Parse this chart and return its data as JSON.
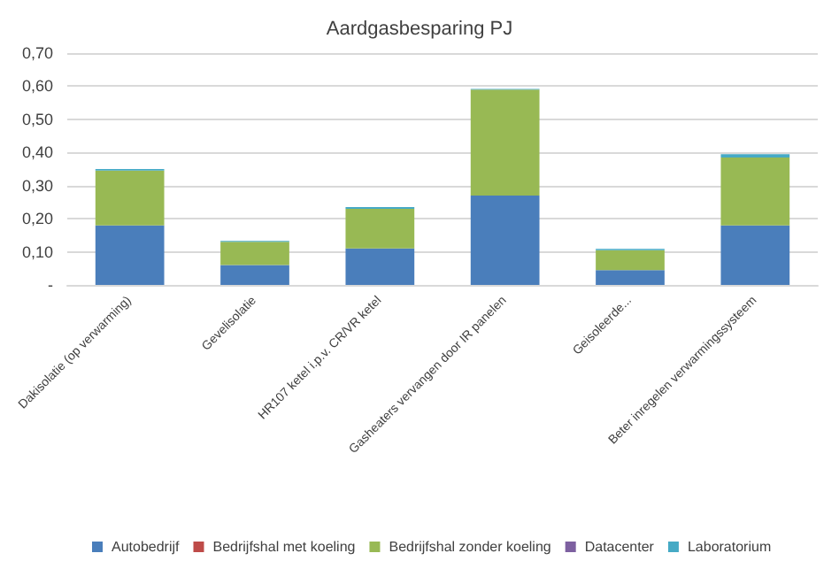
{
  "chart_data": {
    "type": "bar",
    "title": "Aardgasbesparing PJ",
    "stacked": true,
    "categories": [
      "Dakisolatie (op verwarming)",
      "Gevelisolatie",
      "HR107 ketel i.p.v. CR/VR ketel",
      "Gasheaters vervangen door IR panelen",
      "Geisoleerde...",
      "Beter inregelen verwarmingssysteem"
    ],
    "series": [
      {
        "name": "Autobedrijf",
        "color": "#4a7ebb",
        "values": [
          0.18,
          0.06,
          0.11,
          0.27,
          0.045,
          0.18
        ]
      },
      {
        "name": "Bedrijfshal met koeling",
        "color": "#be4b48",
        "values": [
          0,
          0,
          0,
          0,
          0,
          0
        ]
      },
      {
        "name": "Bedrijfshal zonder koeling",
        "color": "#98b954",
        "values": [
          0.165,
          0.07,
          0.12,
          0.32,
          0.06,
          0.205
        ]
      },
      {
        "name": "Datacenter",
        "color": "#7d60a0",
        "values": [
          0,
          0,
          0,
          0,
          0,
          0
        ]
      },
      {
        "name": "Laboratorium",
        "color": "#46aac5",
        "values": [
          0.005,
          0.003,
          0.005,
          0.002,
          0.004,
          0.01
        ]
      }
    ],
    "ylim": [
      0,
      0.7
    ],
    "yticks": [
      {
        "value": 0,
        "label": "-"
      },
      {
        "value": 0.1,
        "label": "0,10"
      },
      {
        "value": 0.2,
        "label": "0,20"
      },
      {
        "value": 0.3,
        "label": "0,30"
      },
      {
        "value": 0.4,
        "label": "0,40"
      },
      {
        "value": 0.5,
        "label": "0,50"
      },
      {
        "value": 0.6,
        "label": "0,60"
      },
      {
        "value": 0.7,
        "label": "0,70"
      }
    ],
    "grid": "y",
    "legend": "bottom"
  }
}
